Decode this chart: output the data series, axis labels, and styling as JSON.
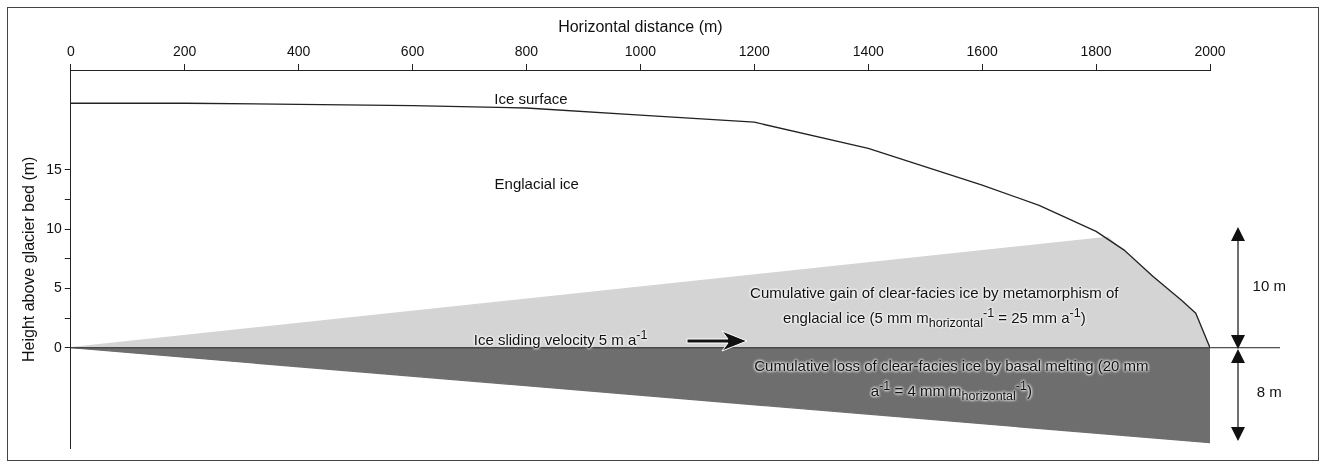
{
  "chart_data": {
    "type": "line",
    "xlabel": "Horizontal distance (m)",
    "ylabel": "Height above glacier bed (m)",
    "xlim": [
      0,
      2000
    ],
    "xticks": [
      0,
      200,
      400,
      600,
      800,
      1000,
      1200,
      1400,
      1600,
      1800,
      2000
    ],
    "ylim": [
      -8.5,
      23.4
    ],
    "yticks": [
      0,
      {
        "value": 2.5,
        "label": null
      },
      5,
      {
        "value": 7.5,
        "label": null
      },
      10,
      {
        "value": 12.5,
        "label": null
      },
      15
    ],
    "grid": false,
    "legend": false,
    "marker": "none",
    "series": [
      {
        "type": "line",
        "color": "#222222",
        "x": [
          0,
          200,
          400,
          600,
          800,
          1000,
          1200,
          1400,
          1600,
          1700,
          1800,
          1850,
          1900,
          1950,
          1975,
          2000
        ],
        "values": [
          20.6,
          20.6,
          20.5,
          20.4,
          20.2,
          19.6,
          19.0,
          16.8,
          13.7,
          12.0,
          9.8,
          8.2,
          6.0,
          4.0,
          2.9,
          0
        ]
      },
      {
        "type": "area",
        "color": "#d4d4d4",
        "x": [
          0,
          1820,
          1900,
          1975,
          2000
        ],
        "values": [
          0,
          9.3,
          6.0,
          2.9,
          0
        ]
      },
      {
        "type": "area",
        "color": "#6e6e6e",
        "x": [
          0,
          2000
        ],
        "values": [
          0,
          -8
        ]
      }
    ],
    "ref_lines": [
      {
        "axis": "y",
        "value": 0,
        "color": "#222222"
      }
    ],
    "annotations": [
      "Ice surface",
      "Englacial ice",
      "Cumulative gain of clear-facies ice by metamorphism of englacial ice   (5 mm m$_{horizontal}$$^{-1}$ = 25 mm a$^{-1}$)",
      "Ice sliding velocity 5 m a$^{-1}$",
      "Cumulative loss of clear-facies ice by basal melting (20 mm a$^{-1}$ = 4 mm m$_{horizontal}$$^{-1}$)",
      "10 m",
      "8 m"
    ]
  }
}
